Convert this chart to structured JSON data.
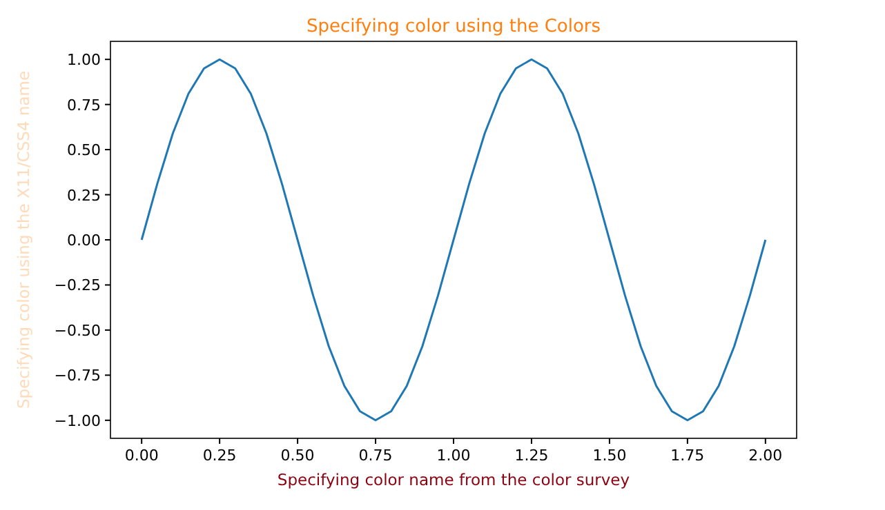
{
  "chart_data": {
    "type": "line",
    "title": "Specifying color using the Colors",
    "xlabel": "Specifying color name from the color survey",
    "ylabel": "Specifying color using the X11/CSS4 name",
    "x": [
      0,
      0.05,
      0.1,
      0.15,
      0.2,
      0.25,
      0.3,
      0.35,
      0.4,
      0.45,
      0.5,
      0.55,
      0.6,
      0.65,
      0.7,
      0.75,
      0.8,
      0.85,
      0.9,
      0.95,
      1,
      1.05,
      1.1,
      1.15,
      1.2,
      1.25,
      1.3,
      1.35,
      1.4,
      1.45,
      1.5,
      1.55,
      1.6,
      1.65,
      1.7,
      1.75,
      1.8,
      1.85,
      1.9,
      1.95,
      2
    ],
    "series": [
      {
        "color": "#1f77b4",
        "values": [
          0,
          0.31,
          0.59,
          0.81,
          0.95,
          1,
          0.95,
          0.81,
          0.59,
          0.31,
          0,
          -0.31,
          -0.59,
          -0.81,
          -0.95,
          -1,
          -0.95,
          -0.81,
          -0.59,
          -0.31,
          0,
          0.31,
          0.59,
          0.81,
          0.95,
          1,
          0.95,
          0.81,
          0.59,
          0.31,
          0,
          -0.31,
          -0.59,
          -0.81,
          -0.95,
          -1,
          -0.95,
          -0.81,
          -0.59,
          -0.31,
          0
        ]
      }
    ],
    "xlim": [
      -0.1,
      2.1
    ],
    "ylim": [
      -1.1,
      1.1
    ],
    "xticks": [
      {
        "value": 0,
        "label": "0.00"
      },
      {
        "value": 0.25,
        "label": "0.25"
      },
      {
        "value": 0.5,
        "label": "0.50"
      },
      {
        "value": 0.75,
        "label": "0.75"
      },
      {
        "value": 1,
        "label": "1.00"
      },
      {
        "value": 1.25,
        "label": "1.25"
      },
      {
        "value": 1.5,
        "label": "1.50"
      },
      {
        "value": 1.75,
        "label": "1.75"
      },
      {
        "value": 2,
        "label": "2.00"
      }
    ],
    "yticks": [
      {
        "value": -1,
        "label": "−1.00"
      },
      {
        "value": -0.75,
        "label": "−0.75"
      },
      {
        "value": -0.5,
        "label": "−0.50"
      },
      {
        "value": -0.25,
        "label": "−0.25"
      },
      {
        "value": 0,
        "label": "0.00"
      },
      {
        "value": 0.25,
        "label": "0.25"
      },
      {
        "value": 0.5,
        "label": "0.50"
      },
      {
        "value": 0.75,
        "label": "0.75"
      },
      {
        "value": 1,
        "label": "1.00"
      }
    ],
    "grid": false
  }
}
